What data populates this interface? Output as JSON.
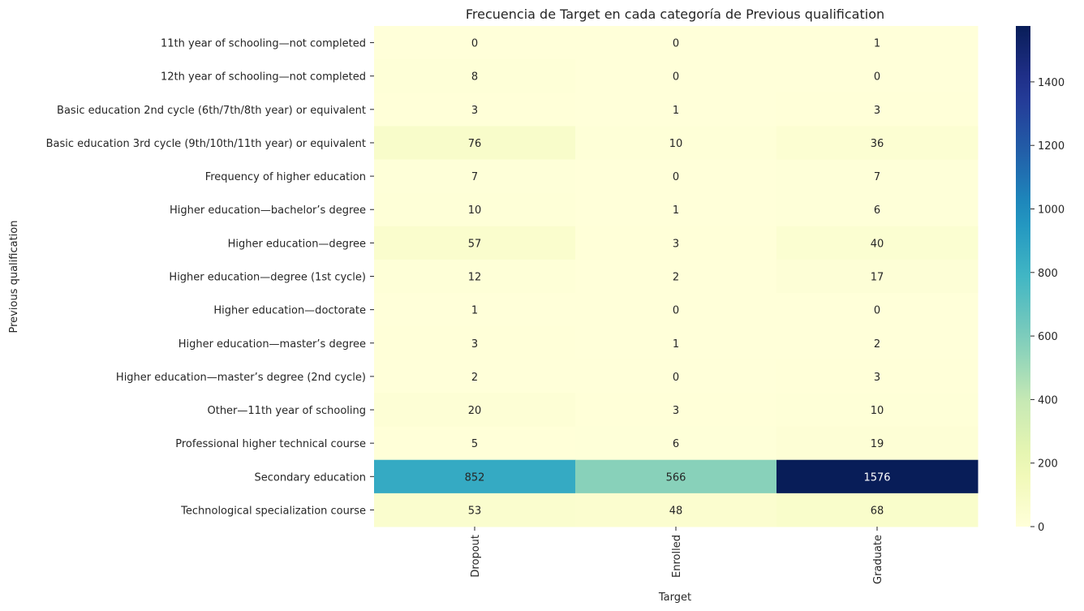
{
  "chart_data": {
    "type": "heatmap",
    "title": "Frecuencia de Target en cada categoría de Previous qualification",
    "xlabel": "Target",
    "ylabel": "Previous qualification",
    "columns": [
      "Dropout",
      "Enrolled",
      "Graduate"
    ],
    "rows": [
      "11th year of schooling—not completed",
      "12th year of schooling—not completed",
      "Basic education 2nd cycle (6th/7th/8th year) or equivalent",
      "Basic education 3rd cycle (9th/10th/11th year) or equivalent",
      "Frequency of higher education",
      "Higher education—bachelor’s degree",
      "Higher education—degree",
      "Higher education—degree (1st cycle)",
      "Higher education—doctorate",
      "Higher education—master’s degree",
      "Higher education—master’s degree (2nd cycle)",
      "Other—11th year of schooling",
      "Professional higher technical course",
      "Secondary education",
      "Technological specialization course"
    ],
    "values": [
      [
        0,
        0,
        1
      ],
      [
        8,
        0,
        0
      ],
      [
        3,
        1,
        3
      ],
      [
        76,
        10,
        36
      ],
      [
        7,
        0,
        7
      ],
      [
        10,
        1,
        6
      ],
      [
        57,
        3,
        40
      ],
      [
        12,
        2,
        17
      ],
      [
        1,
        0,
        0
      ],
      [
        3,
        1,
        2
      ],
      [
        2,
        0,
        3
      ],
      [
        20,
        3,
        10
      ],
      [
        5,
        6,
        19
      ],
      [
        852,
        566,
        1576
      ],
      [
        53,
        48,
        68
      ]
    ],
    "colormap": "YlGnBu",
    "colorbar": {
      "range": [
        0,
        1576
      ],
      "ticks": [
        0,
        200,
        400,
        600,
        800,
        1000,
        1200,
        1400
      ]
    },
    "annotation_colors": {
      "dark_text": "#262626",
      "light_text": "#ffffff"
    }
  }
}
